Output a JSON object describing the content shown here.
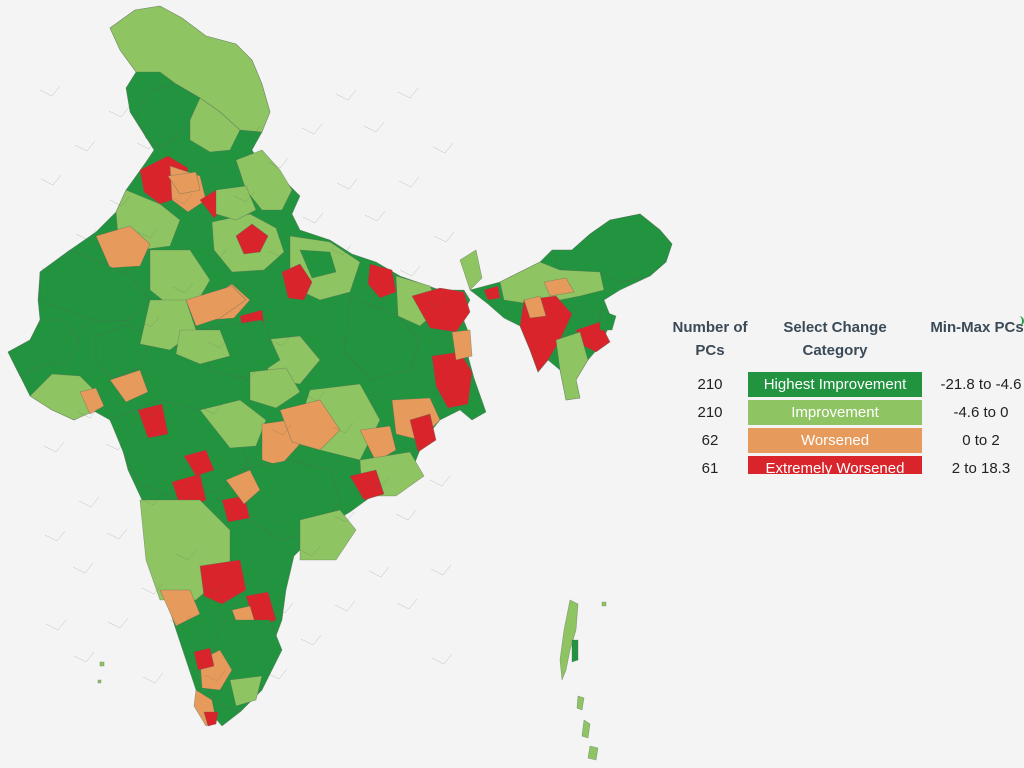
{
  "legend": {
    "headers": {
      "count": "Number of PCs",
      "category": "Select Change Category",
      "range": "Min-Max PCs"
    },
    "rows": [
      {
        "count": "210",
        "category": "Highest Improvement",
        "range": "-21.8 to -4.6",
        "color": "#22933f"
      },
      {
        "count": "210",
        "category": "Improvement",
        "range": "-4.6 to 0",
        "color": "#8fc462"
      },
      {
        "count": "62",
        "category": "Worsened",
        "range": "0 to 2",
        "color": "#e69a5b"
      },
      {
        "count": "61",
        "category": "Extremely Worsened",
        "range": "2 to 18.3",
        "color": "#d9242b"
      }
    ]
  },
  "colors": {
    "background": "#f4f4f4",
    "border": "#5a6a5a",
    "header_text": "#3b4a57"
  }
}
